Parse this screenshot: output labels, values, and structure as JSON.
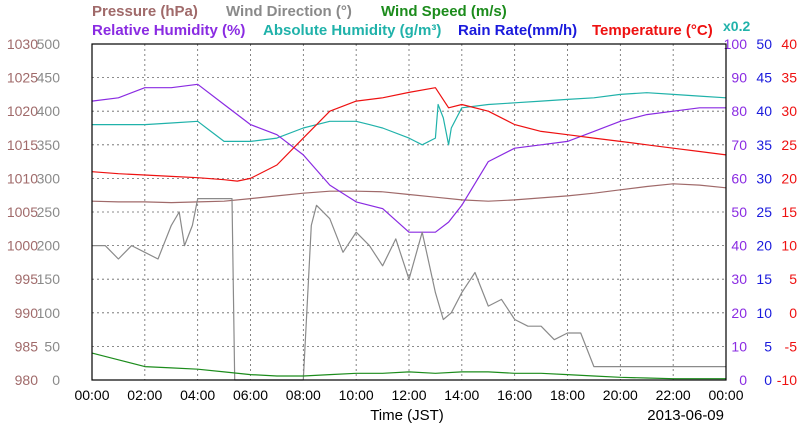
{
  "chart_data": {
    "type": "line",
    "legend": {
      "row1": [
        {
          "label": "Pressure (hPa)",
          "color": "#a06a6a"
        },
        {
          "label": "Wind Direction (°)",
          "color": "#8a8a8a"
        },
        {
          "label": "Wind Speed (m/s)",
          "color": "#1c8c1c"
        }
      ],
      "row2": [
        {
          "label": "Relative Humidity (%)",
          "color": "#8a2be2"
        },
        {
          "label": "Absolute Humidity (g/m³)",
          "color": "#20b2aa"
        },
        {
          "label": "Rain Rate(mm/h)",
          "color": "#1a1adc"
        },
        {
          "label": "Temperature (°C)",
          "color": "#ee1111"
        }
      ],
      "scale_note": {
        "label": "x0.2",
        "color": "#20b2aa"
      }
    },
    "axes": {
      "pressure": {
        "color": "#a06a6a",
        "ticks": [
          "1030",
          "1025",
          "1020",
          "1015",
          "1010",
          "1005",
          "1000",
          "995",
          "990",
          "985",
          "980"
        ],
        "range": [
          980,
          1030
        ]
      },
      "wind_direction": {
        "color": "#8a8a8a",
        "ticks": [
          "500",
          "450",
          "400",
          "350",
          "300",
          "250",
          "200",
          "150",
          "100",
          "50",
          "0"
        ],
        "range": [
          0,
          500
        ]
      },
      "humidity": {
        "color": "#8a2be2",
        "ticks": [
          "100",
          "90",
          "80",
          "70",
          "60",
          "50",
          "40",
          "30",
          "20",
          "10",
          "0"
        ],
        "range": [
          0,
          100
        ]
      },
      "rain_rate": {
        "color": "#1a1adc",
        "ticks": [
          "50",
          "45",
          "40",
          "35",
          "30",
          "25",
          "20",
          "15",
          "10",
          "5",
          "0"
        ],
        "range": [
          0,
          50
        ]
      },
      "temperature": {
        "color": "#ee1111",
        "ticks": [
          "40",
          "35",
          "30",
          "25",
          "20",
          "15",
          "10",
          "5",
          "0",
          "-5",
          "-10"
        ],
        "range": [
          -10,
          40
        ]
      }
    },
    "x_ticks": [
      "00:00",
      "02:00",
      "04:00",
      "06:00",
      "08:00",
      "10:00",
      "12:00",
      "14:00",
      "16:00",
      "18:00",
      "20:00",
      "22:00",
      "00:00"
    ],
    "xlabel": "Time (JST)",
    "date": "2013-06-09",
    "x_unit": "hours",
    "x_range": [
      0,
      24
    ],
    "grid": true,
    "series": [
      {
        "name": "Pressure (hPa)",
        "axis": "pressure",
        "color": "#a06a6a",
        "x": [
          0,
          1,
          2,
          3,
          4,
          5,
          6,
          7,
          8,
          9,
          10,
          11,
          12,
          13,
          14,
          15,
          16,
          17,
          18,
          19,
          20,
          21,
          22,
          23,
          24
        ],
        "y": [
          1006.6,
          1006.5,
          1006.5,
          1006.4,
          1006.5,
          1006.6,
          1007.0,
          1007.4,
          1007.8,
          1008.1,
          1008.1,
          1008.0,
          1007.6,
          1007.2,
          1006.8,
          1006.6,
          1006.8,
          1007.1,
          1007.4,
          1007.8,
          1008.3,
          1008.8,
          1009.2,
          1009.0,
          1008.6
        ]
      },
      {
        "name": "Absolute Humidity (g/m³)",
        "axis": "humidity",
        "color": "#20b2aa",
        "x": [
          0,
          1,
          2,
          3,
          4,
          4.5,
          5,
          6,
          7,
          8,
          9,
          10,
          10.5,
          11,
          12,
          12.5,
          13,
          13.1,
          13.3,
          13.5,
          13.6,
          14,
          15,
          16,
          17,
          18,
          19,
          20,
          21,
          22,
          23,
          24
        ],
        "y": [
          76,
          76,
          76,
          76.5,
          77,
          74,
          71,
          71,
          72,
          75,
          77,
          77,
          76,
          75,
          72,
          70,
          72,
          82,
          78,
          70,
          75,
          81,
          82,
          82.5,
          83,
          83.5,
          84,
          85,
          85.5,
          85,
          84.5,
          84
        ]
      },
      {
        "name": "Relative Humidity (%)",
        "axis": "humidity",
        "color": "#8a2be2",
        "x": [
          0,
          1,
          2,
          3,
          4,
          5,
          6,
          7,
          8,
          9,
          10,
          11,
          12,
          13,
          13.5,
          14,
          15,
          16,
          17,
          18,
          19,
          20,
          21,
          22,
          23,
          24
        ],
        "y": [
          83,
          84,
          87,
          87,
          88,
          82,
          76,
          73,
          67,
          58,
          53,
          51,
          44,
          44,
          47,
          52,
          65,
          69,
          70,
          71,
          74,
          77,
          79,
          80,
          81,
          81
        ]
      },
      {
        "name": "Temperature (°C)",
        "axis": "temperature",
        "color": "#ee1111",
        "x": [
          0,
          1,
          2,
          3,
          4,
          5,
          5.5,
          6,
          7,
          8,
          9,
          10,
          11,
          12,
          13,
          13.5,
          14,
          15,
          16,
          17,
          18,
          19,
          20,
          21,
          22,
          23,
          24
        ],
        "y": [
          21,
          20.7,
          20.5,
          20.3,
          20.1,
          19.8,
          19.6,
          20,
          22,
          26,
          30,
          31.5,
          32,
          32.8,
          33.5,
          30.5,
          31,
          30,
          28,
          27,
          26.5,
          26,
          25.5,
          25,
          24.5,
          24,
          23.5
        ]
      },
      {
        "name": "Wind Direction (°)",
        "axis": "wind_direction",
        "color": "#8a8a8a",
        "x": [
          0,
          0.5,
          1,
          1.5,
          2,
          2.5,
          3,
          3.3,
          3.5,
          3.8,
          4,
          5,
          5.3,
          5.4,
          8,
          8.3,
          8.5,
          9,
          9.5,
          10,
          10.5,
          11,
          11.5,
          12,
          12.5,
          13,
          13.3,
          13.6,
          14,
          14.5,
          15,
          15.5,
          16,
          16.5,
          17,
          17.5,
          18,
          18.5,
          19,
          20,
          22,
          24
        ],
        "y": [
          200,
          200,
          180,
          200,
          190,
          180,
          230,
          250,
          200,
          230,
          270,
          270,
          270,
          0,
          0,
          230,
          260,
          240,
          190,
          220,
          200,
          170,
          210,
          150,
          220,
          130,
          90,
          100,
          130,
          160,
          110,
          120,
          90,
          80,
          80,
          60,
          70,
          70,
          20,
          20,
          20,
          20
        ]
      },
      {
        "name": "Wind Speed (m/s)",
        "axis": "wind_direction",
        "color": "#1c8c1c",
        "x": [
          0,
          1,
          2,
          3,
          4,
          5,
          6,
          7,
          8,
          9,
          10,
          11,
          12,
          13,
          14,
          15,
          16,
          17,
          18,
          19,
          20,
          21,
          22,
          23,
          24
        ],
        "y": [
          40,
          30,
          20,
          18,
          16,
          12,
          8,
          6,
          6,
          8,
          10,
          10,
          12,
          10,
          12,
          12,
          10,
          10,
          8,
          6,
          4,
          3,
          2,
          2,
          2
        ]
      }
    ]
  }
}
